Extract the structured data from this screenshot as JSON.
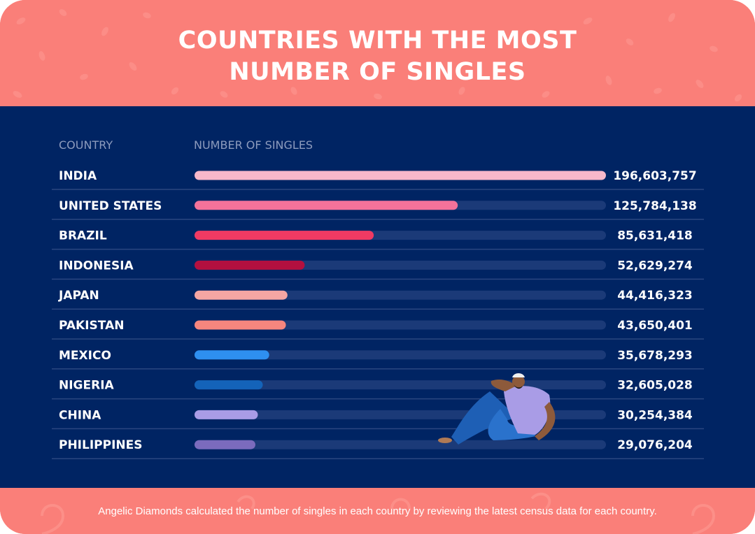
{
  "title_line1": "COUNTRIES WITH THE MOST",
  "title_line2": "NUMBER OF SINGLES",
  "column_country": "COUNTRY",
  "column_value": "NUMBER OF SINGLES",
  "footnote": "Angelic Diamonds calculated the number of singles in each country by reviewing the latest census data for each country.",
  "colors": {
    "header": "#fa7f79",
    "panel": "#002463",
    "track": "#1b3a78",
    "divider": "#2a4680"
  },
  "chart_data": {
    "type": "bar",
    "orientation": "horizontal",
    "categories": [
      "INDIA",
      "UNITED STATES",
      "BRAZIL",
      "INDONESIA",
      "JAPAN",
      "PAKISTAN",
      "MEXICO",
      "NIGERIA",
      "CHINA",
      "PHILIPPINES"
    ],
    "values": [
      196603757,
      125784138,
      85631418,
      52629274,
      44416323,
      43650401,
      35678293,
      32605028,
      30254384,
      29076204
    ],
    "value_labels": [
      "196,603,757",
      "125,784,138",
      "85,631,418",
      "52,629,274",
      "44,416,323",
      "43,650,401",
      "35,678,293",
      "32,605,028",
      "30,254,384",
      "29,076,204"
    ],
    "bar_colors": [
      "#f8b8ca",
      "#f4729a",
      "#f03a63",
      "#b3103f",
      "#f5a6a3",
      "#f6867e",
      "#2e8ff0",
      "#1463b9",
      "#a99ce6",
      "#7b6bbd"
    ],
    "xlim": [
      0,
      196603757
    ],
    "grid": false,
    "legend": "none"
  }
}
